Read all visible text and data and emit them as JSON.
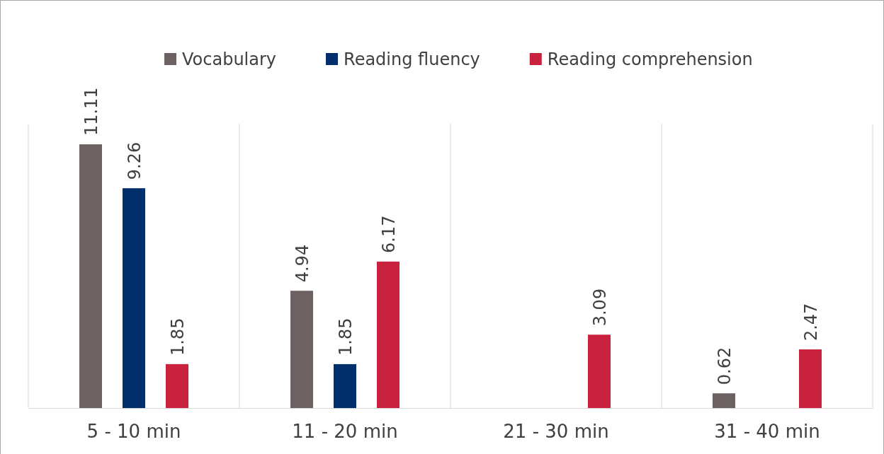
{
  "chart_data": {
    "type": "bar",
    "categories": [
      "5 - 10 min",
      "11 - 20 min",
      "21 - 30 min",
      "31 - 40 min"
    ],
    "series": [
      {
        "name": "Vocabulary",
        "color": "#6b6261",
        "values": [
          11.11,
          4.94,
          null,
          0.62
        ]
      },
      {
        "name": "Reading fluency",
        "color": "#002f6c",
        "values": [
          9.26,
          1.85,
          null,
          null
        ]
      },
      {
        "name": "Reading comprehension",
        "color": "#c8223f",
        "values": [
          1.85,
          6.17,
          3.09,
          2.47
        ]
      }
    ],
    "data_labels": true,
    "grid": "x",
    "legend": "top"
  }
}
